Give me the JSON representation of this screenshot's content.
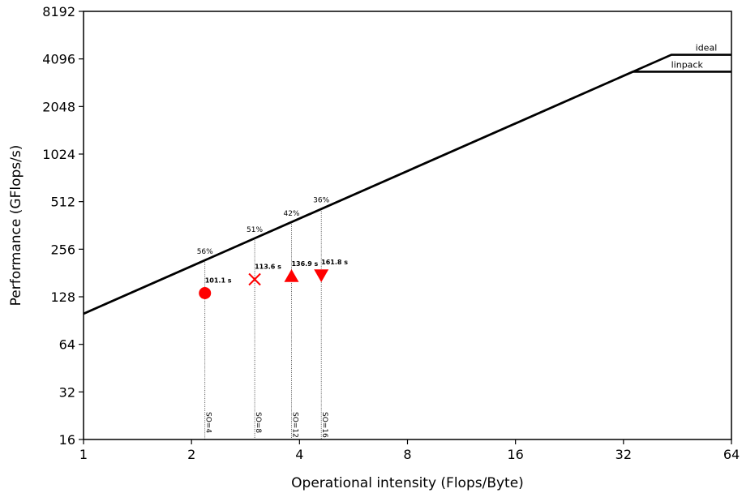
{
  "chart_data": {
    "type": "line",
    "xlabel": "Operational intensity (Flops/Byte)",
    "ylabel": "Performance (GFlops/s)",
    "x_scale": "log2",
    "y_scale": "log2",
    "xlim": [
      1,
      64
    ],
    "ylim": [
      16,
      8192
    ],
    "x_ticks": [
      1,
      2,
      4,
      8,
      16,
      32,
      64
    ],
    "y_ticks": [
      16,
      32,
      64,
      128,
      256,
      512,
      1024,
      2048,
      4096,
      8192
    ],
    "grid": false,
    "roofline": {
      "bandwidth_gflops_per_flop_byte": 100,
      "ceilings": [
        {
          "name": "ideal",
          "value": 4352,
          "x_start": 43.52
        },
        {
          "name": "linpack",
          "value": 3400,
          "x_start": 34.0
        }
      ]
    },
    "points": [
      {
        "x": 2.18,
        "y": 135,
        "marker": "circle",
        "color": "#ff0000",
        "label": "101.1 s",
        "percent": "56%",
        "so": "SO=4"
      },
      {
        "x": 3.0,
        "y": 165,
        "marker": "x",
        "color": "#ff0000",
        "label": "113.6 s",
        "percent": "51%",
        "so": "SO=8"
      },
      {
        "x": 3.8,
        "y": 172,
        "marker": "triangle-up",
        "color": "#ff0000",
        "label": "136.9 s",
        "percent": "42%",
        "so": "SO=12"
      },
      {
        "x": 4.6,
        "y": 176,
        "marker": "triangle-down",
        "color": "#ff0000",
        "label": "161.8 s",
        "percent": "36%",
        "so": "SO=16"
      }
    ]
  }
}
